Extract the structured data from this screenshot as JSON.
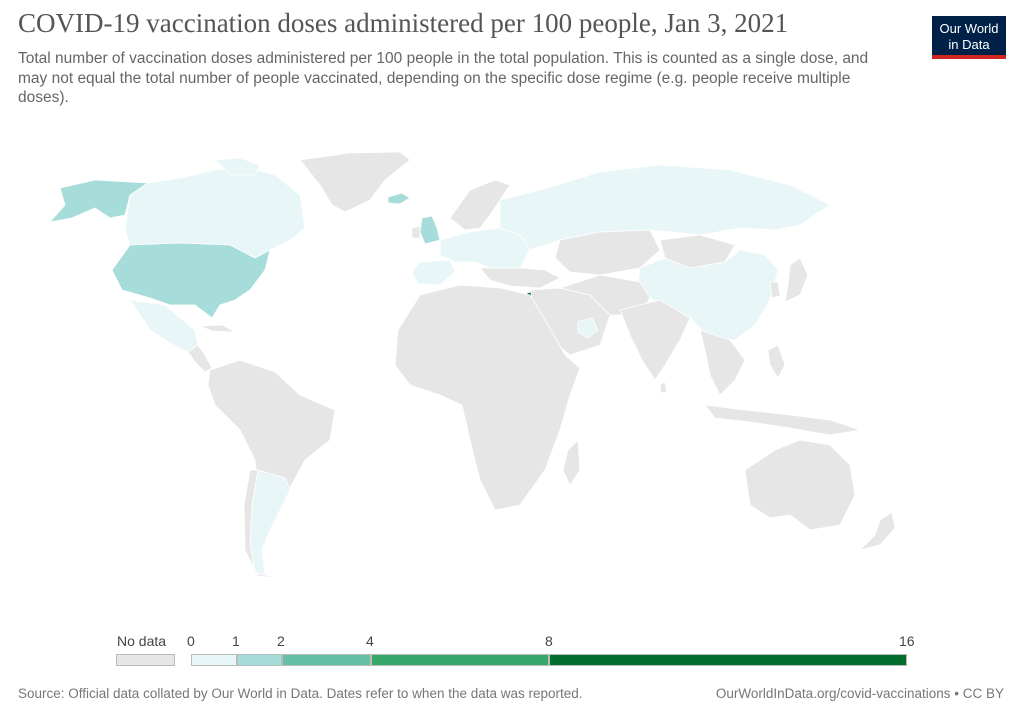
{
  "title": "COVID-19 vaccination doses administered per 100 people, Jan 3, 2021",
  "subtitle": "Total number of vaccination doses administered per 100 people in the total population. This is counted as a single dose, and may not equal the total number of people vaccinated, depending on the specific dose regime (e.g. people receive multiple doses).",
  "logo": {
    "line1": "Our World",
    "line2": "in Data"
  },
  "colors": {
    "no_data": "#e6e6e6",
    "bin_0_1": "#e8f6f8",
    "bin_1_2": "#a6dcda",
    "bin_2_4": "#65c1a6",
    "bin_4_8": "#38a86a",
    "bin_8_16": "#006d2c",
    "logo_bg": "#002147",
    "logo_bar": "#ce261e"
  },
  "legend": {
    "no_data_label": "No data",
    "ticks": [
      "0",
      "1",
      "2",
      "4",
      "8",
      "16"
    ]
  },
  "source": "Source: Official data collated by Our World in Data. Dates refer to when the data was reported.",
  "url": "OurWorldInData.org/covid-vaccinations • CC BY"
}
